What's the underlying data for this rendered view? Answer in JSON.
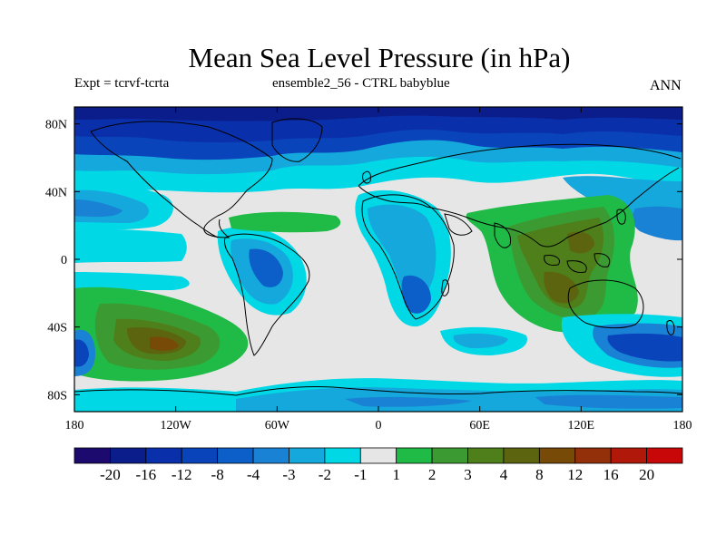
{
  "title": "Mean Sea Level Pressure (in hPa)",
  "subtitle_left": "Expt = tcrvf-tcrta",
  "subtitle_center": "ensemble2_56 - CTRL babyblue",
  "subtitle_right": "ANN",
  "lat_labels": [
    "80N",
    "40N",
    "0",
    "40S",
    "80S"
  ],
  "lon_labels": [
    "180",
    "120W",
    "60W",
    "0",
    "60E",
    "120E",
    "180"
  ],
  "colorbar": {
    "colors": [
      "#1d0a6e",
      "#0a1d8a",
      "#0a2faa",
      "#0a44bb",
      "#0c5fc8",
      "#1a82d4",
      "#14a8dc",
      "#00d8e6",
      "#e6e6e6",
      "#1fbb46",
      "#3c9a32",
      "#4e7f1a",
      "#5c6410",
      "#784a08",
      "#93300a",
      "#b0180a",
      "#c80808"
    ],
    "labels": [
      "-20",
      "-16",
      "-12",
      "-8",
      "-4",
      "-3",
      "-2",
      "-1",
      "1",
      "2",
      "3",
      "4",
      "8",
      "12",
      "16",
      "20"
    ]
  },
  "legend_colors": {
    "land_outline": "#000000",
    "neutral": "#e6e6e6"
  }
}
